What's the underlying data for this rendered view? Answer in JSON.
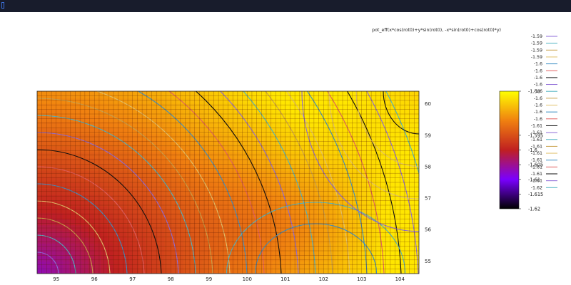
{
  "chart_data": {
    "type": "heatmap",
    "x_ticks": [
      "95",
      "96",
      "97",
      "98",
      "99",
      "100",
      "101",
      "102",
      "103",
      "104"
    ],
    "y_ticks": [
      "60",
      "59",
      "58",
      "57",
      "56",
      "55"
    ],
    "xlim": [
      94.5,
      104.5
    ],
    "ylim": [
      54.6,
      60.4
    ],
    "legend_title": "pot_eff(x*cos(rot0)+y*sin(rot0), -x*sin(rot0)+cos(rot0)*y)",
    "contour_levels": [
      {
        "label": "-1.59",
        "color": "#8e6bd8"
      },
      {
        "label": "-1.59",
        "color": "#4fb3c2"
      },
      {
        "label": "-1.59",
        "color": "#c9a04a"
      },
      {
        "label": "-1.59",
        "color": "#e1c16b"
      },
      {
        "label": "-1.6",
        "color": "#3c8fc4"
      },
      {
        "label": "-1.6",
        "color": "#e06060"
      },
      {
        "label": "-1.6",
        "color": "#101010"
      },
      {
        "label": "-1.6",
        "color": "#8e6bd8"
      },
      {
        "label": "-1.6",
        "color": "#4fb3c2"
      },
      {
        "label": "-1.6",
        "color": "#c9a04a"
      },
      {
        "label": "-1.6",
        "color": "#e1c16b"
      },
      {
        "label": "-1.6",
        "color": "#3c8fc4"
      },
      {
        "label": "-1.6",
        "color": "#e06060"
      },
      {
        "label": "-1.61",
        "color": "#101010"
      },
      {
        "label": "-1.61",
        "color": "#8e6bd8"
      },
      {
        "label": "-1.61",
        "color": "#4fb3c2"
      },
      {
        "label": "-1.61",
        "color": "#c9a04a"
      },
      {
        "label": "-1.61",
        "color": "#e1c16b"
      },
      {
        "label": "-1.61",
        "color": "#3c8fc4"
      },
      {
        "label": "-1.61",
        "color": "#e06060"
      },
      {
        "label": "-1.61",
        "color": "#101010"
      },
      {
        "label": "-1.61",
        "color": "#8e6bd8"
      },
      {
        "label": "-1.62",
        "color": "#4fb3c2"
      }
    ],
    "colorbar_labels": [
      "-1.58",
      "-1.595",
      "-1.6",
      "-1.605",
      "-1.61",
      "-1.615",
      "-1.62"
    ],
    "zlim": [
      -1.62,
      -1.58
    ],
    "colormap": "black-purple-red-orange-yellow",
    "grid": "on"
  }
}
